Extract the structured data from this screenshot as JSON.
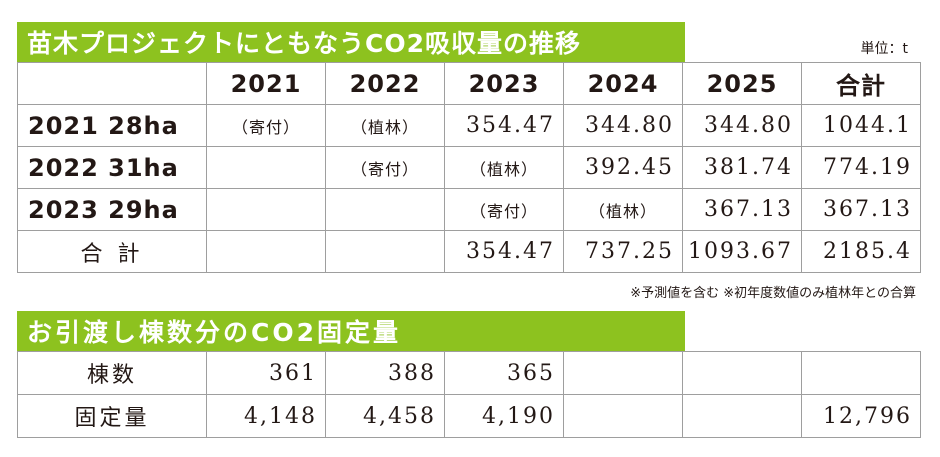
{
  "section1": {
    "title": "苗木プロジェクトにともなうCO2吸収量の推移",
    "unit": "単位：t",
    "header": [
      "",
      "2021",
      "2022",
      "2023",
      "2024",
      "2025",
      "合計"
    ],
    "rows": [
      [
        "2021 28ha",
        "（寄付）",
        "（植林）",
        "354.47",
        "344.80",
        "344.80",
        "1044.1"
      ],
      [
        "2022 31ha",
        "",
        "（寄付）",
        "（植林）",
        "392.45",
        "381.74",
        "774.19"
      ],
      [
        "2023 29ha",
        "",
        "",
        "（寄付）",
        "（植林）",
        "367.13",
        "367.13"
      ],
      [
        "合 計",
        "",
        "",
        "354.47",
        "737.25",
        "1093.67",
        "2185.4"
      ]
    ],
    "note": "※予測値を含む ※初年度数値のみ植林年との合算"
  },
  "section2": {
    "title": "お引渡し棟数分のCO2固定量",
    "rows": [
      [
        "棟数",
        "361",
        "388",
        "365",
        "",
        "",
        ""
      ],
      [
        "固定量",
        "4,148",
        "4,458",
        "4,190",
        "",
        "",
        "12,796"
      ]
    ]
  }
}
